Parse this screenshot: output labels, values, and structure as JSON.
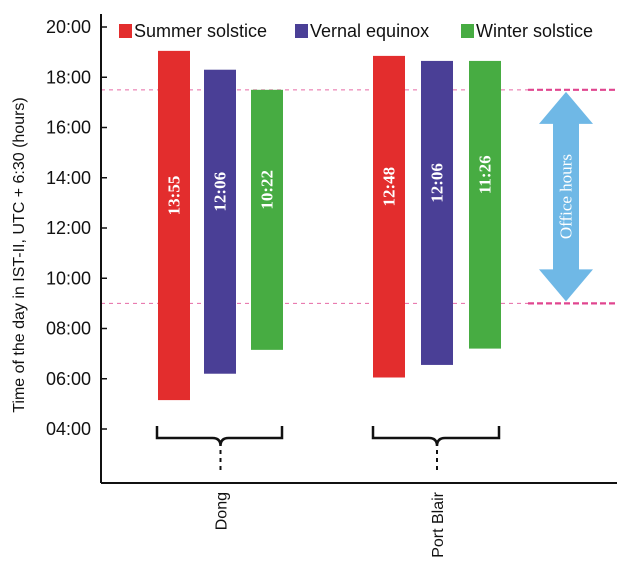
{
  "chart_data": {
    "type": "bar",
    "subtype": "floating-range",
    "ylabel": "Time of the day in IST-II, UTC + 6:30 (hours)",
    "yticks": [
      "04:00",
      "06:00",
      "08:00",
      "10:00",
      "12:00",
      "14:00",
      "16:00",
      "18:00",
      "20:00"
    ],
    "ylim": [
      3.0,
      20.5
    ],
    "categories": [
      "Dong",
      "Port Blair"
    ],
    "series": [
      {
        "name": "Summer solstice",
        "color": "#e32d2d",
        "ranges": [
          [
            5.15,
            19.05
          ],
          [
            6.05,
            18.85
          ]
        ],
        "labels": [
          "13:55",
          "12:48"
        ]
      },
      {
        "name": "Vernal equinox",
        "color": "#4a3f96",
        "ranges": [
          [
            6.2,
            18.3
          ],
          [
            6.55,
            18.65
          ]
        ],
        "labels": [
          "12:06",
          "12:06"
        ]
      },
      {
        "name": "Winter solstice",
        "color": "#47ac42",
        "ranges": [
          [
            7.15,
            17.5
          ],
          [
            7.2,
            18.65
          ]
        ],
        "labels": [
          "10:22",
          "11:26"
        ]
      }
    ],
    "office_hours": {
      "label": "Office hours",
      "start": 9.0,
      "end": 17.5,
      "color": "#e0458f",
      "arrow_color": "#6fb8e6"
    },
    "legend_position": "top",
    "grid": false
  }
}
